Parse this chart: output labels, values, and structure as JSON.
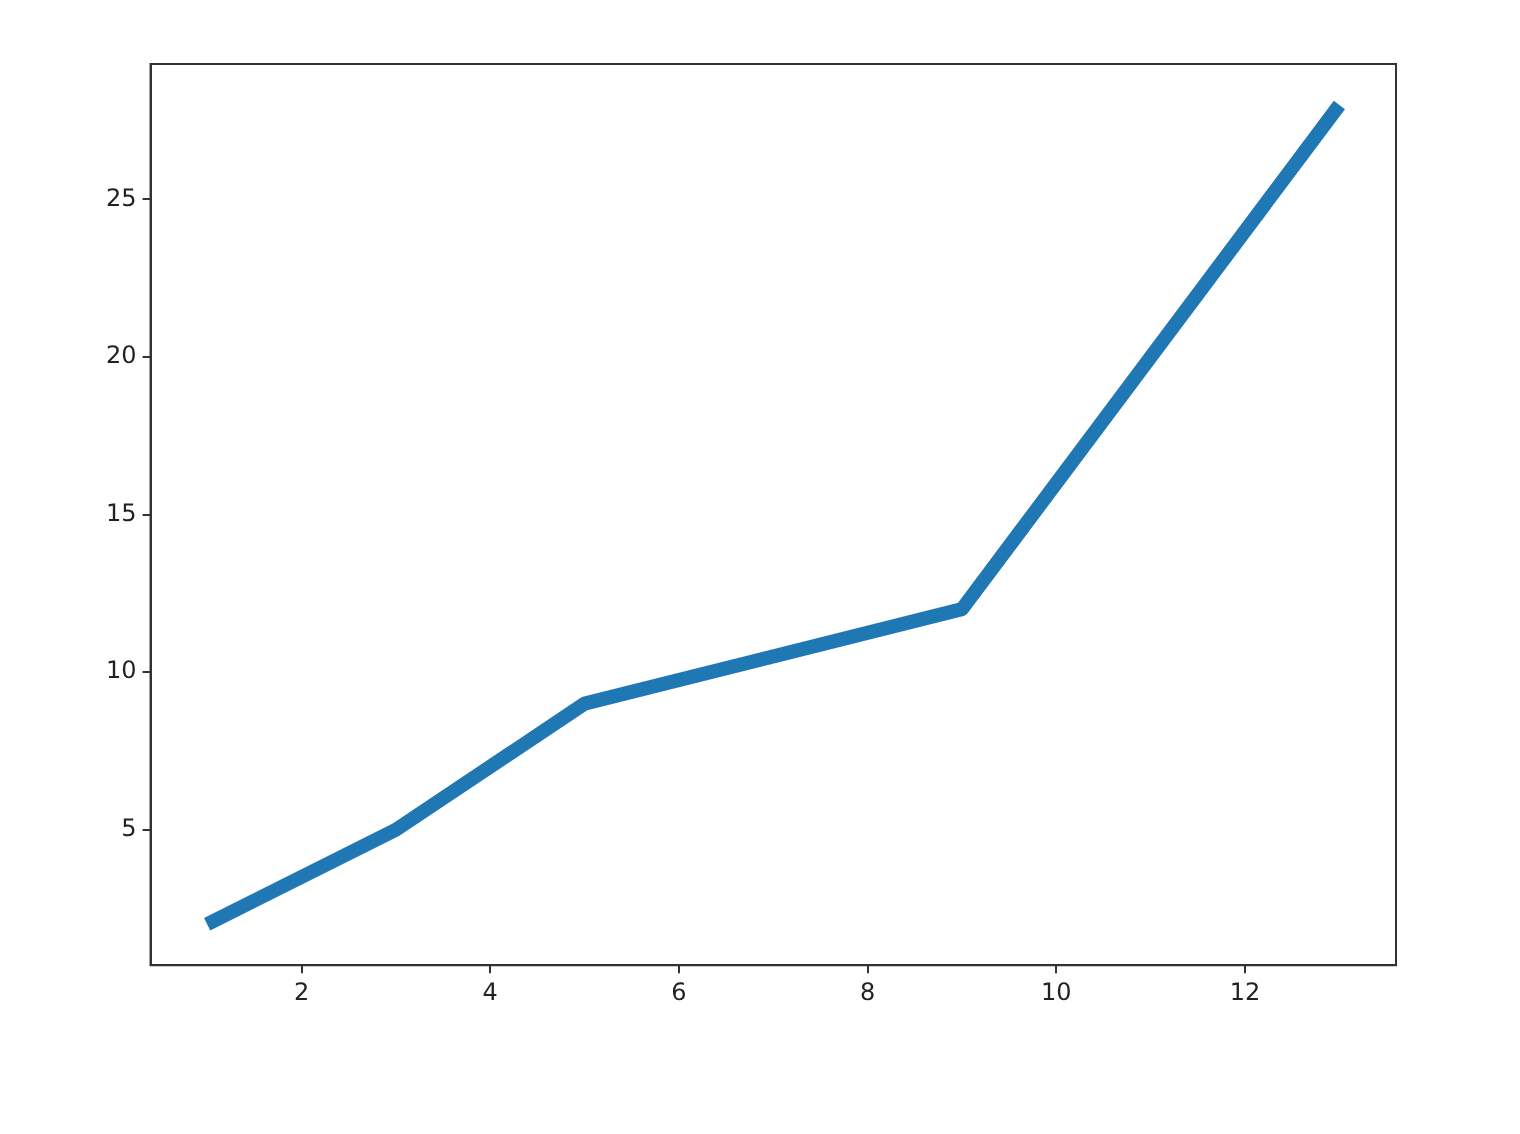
{
  "chart_data": {
    "type": "line",
    "x": [
      1,
      3,
      5,
      9,
      13
    ],
    "values": [
      2,
      5,
      9,
      12,
      28
    ],
    "color": "#1f77b4",
    "xlim": [
      0.4,
      13.6
    ],
    "ylim": [
      0.7,
      29.3
    ],
    "xticks": [
      2,
      4,
      6,
      8,
      10,
      12
    ],
    "yticks": [
      5,
      10,
      15,
      20,
      25
    ],
    "grid": false
  }
}
